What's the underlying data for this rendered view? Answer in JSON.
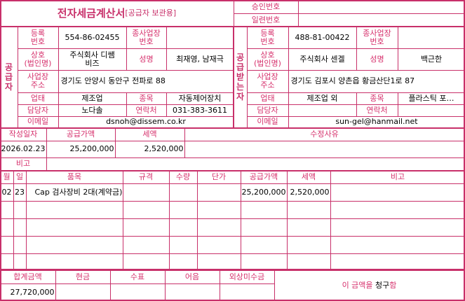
{
  "header": {
    "title": "전자세금계산서",
    "subtitle": "[공급자 보관용]",
    "approval_label": "승인번호",
    "approval_value": "",
    "serial_label": "일련번호",
    "serial_value": ""
  },
  "labels": {
    "reg_no": "등록\n번호",
    "branch_no": "종사업장\n번호",
    "company": "상호\n(법인명)",
    "ceo": "성명",
    "address": "사업장\n주소",
    "business_type": "업태",
    "business_item": "종목",
    "manager": "담당자",
    "contact": "연락처",
    "email": "이메일"
  },
  "supplier": {
    "side_label": [
      "공",
      "급",
      "자"
    ],
    "reg_no": "554-86-02455",
    "branch_no": "",
    "company": "주식회사 디쌤\n비즈",
    "ceo": "최재영, 남재극",
    "address": "경기도 안양시 동안구 전파로 88",
    "business_type": "제조업",
    "business_item": "자동제어장치",
    "manager": "노다솔",
    "contact": "031-383-3611",
    "email": "dsnoh@dissem.co.kr"
  },
  "receiver": {
    "side_label": [
      "공",
      "급",
      "받",
      "는",
      "자"
    ],
    "reg_no": "488-81-00422",
    "branch_no": "",
    "company": "주식회사 센겔",
    "ceo": "백근한",
    "address": "경기도 김포시 양촌읍 황금산단1로 87",
    "business_type": "제조업 외",
    "business_item": "플라스틱 포…",
    "manager": "",
    "contact": "",
    "email": "sun-gel@hanmail.net"
  },
  "summary": {
    "date_label": "작성일자",
    "supply_label": "공급가액",
    "tax_label": "세액",
    "reason_label": "수정사유",
    "date": "2026.02.23",
    "supply": "25,200,000",
    "tax": "2,520,000",
    "reason": "",
    "note_label": "비고",
    "note": ""
  },
  "items": {
    "headers": [
      "월",
      "일",
      "품목",
      "규격",
      "수량",
      "단가",
      "공급가액",
      "세액",
      "비고"
    ],
    "rows": [
      [
        "02",
        "23",
        "Cap 검사장비 2대(계약금)",
        "",
        "",
        "",
        "25,200,000",
        "2,520,000",
        ""
      ],
      [
        "",
        "",
        "",
        "",
        "",
        "",
        "",
        "",
        ""
      ],
      [
        "",
        "",
        "",
        "",
        "",
        "",
        "",
        "",
        ""
      ],
      [
        "",
        "",
        "",
        "",
        "",
        "",
        "",
        "",
        ""
      ],
      [
        "",
        "",
        "",
        "",
        "",
        "",
        "",
        "",
        ""
      ]
    ]
  },
  "totals": {
    "headers": [
      "합계금액",
      "현금",
      "수표",
      "어음",
      "외상미수금"
    ],
    "values": [
      "27,720,000",
      "",
      "",
      "",
      ""
    ],
    "claim_prefix": "이 금액을 ",
    "claim_word": "청구",
    "claim_suffix": "함"
  },
  "colors": {
    "border": "#c8306a",
    "label": "#d6306c"
  }
}
